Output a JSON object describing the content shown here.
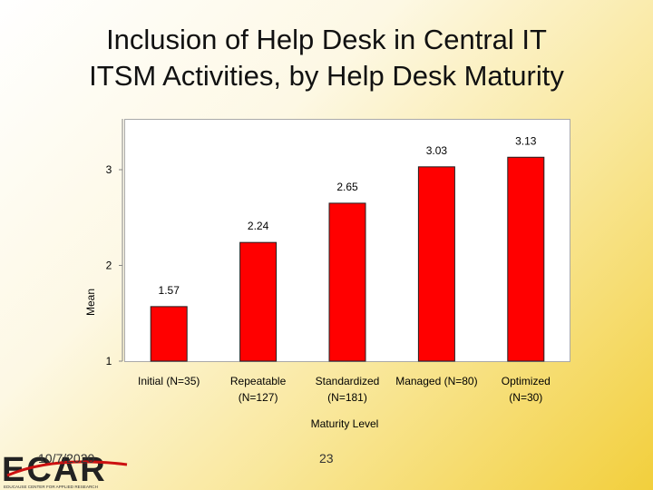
{
  "slide": {
    "title_line1": "Inclusion of Help Desk in Central IT",
    "title_line2": "ITSM Activities, by Help Desk Maturity",
    "date": "10/7/2020",
    "page_number": "23",
    "logo_text": "ECAR",
    "logo_tagline": "EDUCAUSE CENTER FOR APPLIED RESEARCH"
  },
  "chart_data": {
    "type": "bar",
    "title": "",
    "xlabel": "Maturity Level",
    "ylabel": "Mean",
    "ylim": [
      1,
      3.5
    ],
    "yticks": [
      1,
      2,
      3
    ],
    "grid": false,
    "bar_color": "#ff0000",
    "categories": [
      [
        "Initial (N=35)"
      ],
      [
        "Repeatable",
        "(N=127)"
      ],
      [
        "Standardized",
        "(N=181)"
      ],
      [
        "Managed (N=80)"
      ],
      [
        "Optimized",
        "(N=30)"
      ]
    ],
    "values": [
      1.57,
      2.24,
      2.65,
      3.03,
      3.13
    ],
    "value_labels": [
      "1.57",
      "2.24",
      "2.65",
      "3.03",
      "3.13"
    ]
  }
}
